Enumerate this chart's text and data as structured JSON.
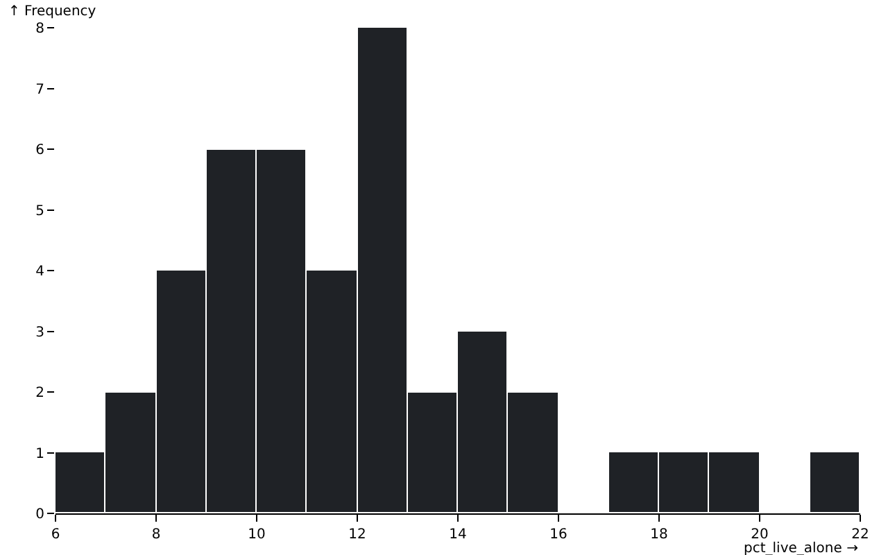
{
  "chart_data": {
    "type": "histogram",
    "xlabel": "pct_live_alone →",
    "ylabel": "↑ Frequency",
    "bins": [
      6,
      7,
      8,
      9,
      10,
      11,
      12,
      13,
      14,
      15,
      16,
      17,
      18,
      19,
      20,
      21,
      22
    ],
    "values": [
      1,
      2,
      4,
      6,
      6,
      4,
      8,
      2,
      3,
      2,
      0,
      1,
      1,
      1,
      0,
      1
    ],
    "color": "#1f2226",
    "xlim": [
      6,
      22
    ],
    "xticks": [
      6,
      8,
      10,
      12,
      14,
      16,
      18,
      20,
      22
    ],
    "ylim": [
      0,
      8
    ],
    "yticks": [
      0,
      1,
      2,
      3,
      4,
      5,
      6,
      7,
      8
    ],
    "grid": false
  }
}
